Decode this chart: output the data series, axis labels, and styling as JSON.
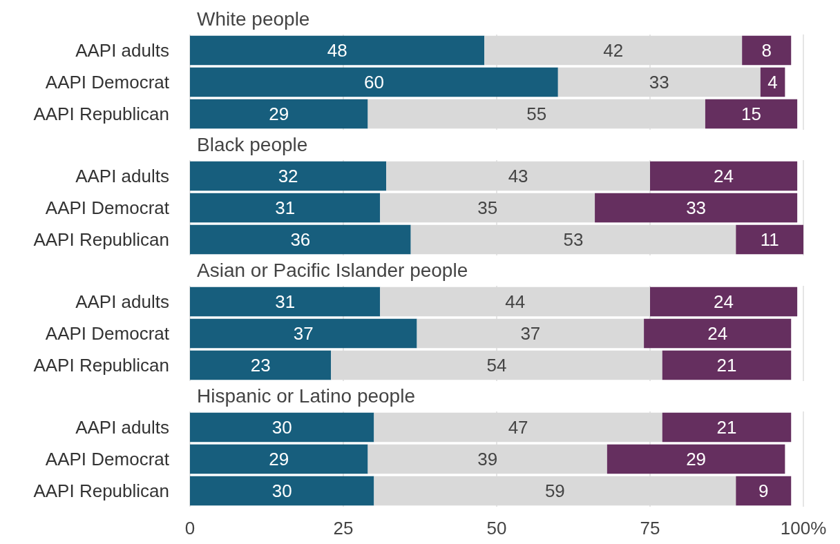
{
  "chart_data": [
    {
      "type": "bar",
      "orientation": "horizontal",
      "stacked": true,
      "data_labels": true,
      "grid": "x",
      "tick_labels": "y",
      "title": "White people",
      "categories": [
        "AAPI adults",
        "AAPI Democrat",
        "AAPI Republican"
      ],
      "xlim": [
        0,
        100
      ],
      "xticks": [
        0,
        25,
        50,
        75,
        100
      ],
      "series": [
        {
          "color": "#175e7d",
          "values": [
            48,
            60,
            29
          ]
        },
        {
          "color": "#d9d9d9",
          "values": [
            42,
            33,
            55
          ]
        },
        {
          "color": "#652f5f",
          "values": [
            8,
            4,
            15
          ]
        }
      ]
    },
    {
      "type": "bar",
      "orientation": "horizontal",
      "stacked": true,
      "data_labels": true,
      "grid": "x",
      "tick_labels": "y",
      "title": "Black people",
      "categories": [
        "AAPI adults",
        "AAPI Democrat",
        "AAPI Republican"
      ],
      "xlim": [
        0,
        100
      ],
      "xticks": [
        0,
        25,
        50,
        75,
        100
      ],
      "series": [
        {
          "color": "#175e7d",
          "values": [
            32,
            31,
            36
          ]
        },
        {
          "color": "#d9d9d9",
          "values": [
            43,
            35,
            53
          ]
        },
        {
          "color": "#652f5f",
          "values": [
            24,
            33,
            11
          ]
        }
      ]
    },
    {
      "type": "bar",
      "orientation": "horizontal",
      "stacked": true,
      "data_labels": true,
      "grid": "x",
      "tick_labels": "y",
      "title": "Asian or Pacific Islander people",
      "categories": [
        "AAPI adults",
        "AAPI Democrat",
        "AAPI Republican"
      ],
      "xlim": [
        0,
        100
      ],
      "xticks": [
        0,
        25,
        50,
        75,
        100
      ],
      "series": [
        {
          "color": "#175e7d",
          "values": [
            31,
            37,
            23
          ]
        },
        {
          "color": "#d9d9d9",
          "values": [
            44,
            37,
            54
          ]
        },
        {
          "color": "#652f5f",
          "values": [
            24,
            24,
            21
          ]
        }
      ]
    },
    {
      "type": "bar",
      "orientation": "horizontal",
      "stacked": true,
      "data_labels": true,
      "grid": "x",
      "title": "Hispanic or Latino people",
      "categories": [
        "AAPI adults",
        "AAPI Democrat",
        "AAPI Republican"
      ],
      "xlim": [
        0,
        100
      ],
      "xticks": [
        0,
        25,
        50,
        75,
        {
          "value": 100,
          "label": "100%"
        }
      ],
      "series": [
        {
          "color": "#175e7d",
          "values": [
            30,
            29,
            30
          ]
        },
        {
          "color": "#d9d9d9",
          "values": [
            47,
            39,
            59
          ]
        },
        {
          "color": "#652f5f",
          "values": [
            21,
            29,
            9
          ]
        }
      ]
    }
  ]
}
